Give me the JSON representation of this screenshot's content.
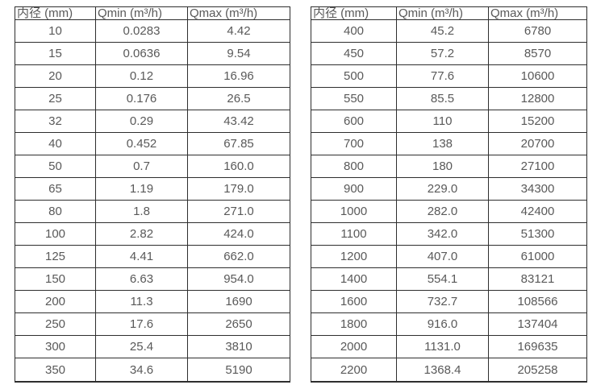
{
  "page": {
    "background_color": "#ffffff",
    "text_color": "#595959",
    "border_color": "#2e2e2e"
  },
  "tables": [
    {
      "name": "flow-spec-table-small-diameters",
      "columns": [
        "内径 (mm)",
        "Qmin (m³/h)",
        "Qmax (m³/h)"
      ],
      "rows": [
        [
          "10",
          "0.0283",
          "4.42"
        ],
        [
          "15",
          "0.0636",
          "9.54"
        ],
        [
          "20",
          "0.12",
          "16.96"
        ],
        [
          "25",
          "0.176",
          "26.5"
        ],
        [
          "32",
          "0.29",
          "43.42"
        ],
        [
          "40",
          "0.452",
          "67.85"
        ],
        [
          "50",
          "0.7",
          "160.0"
        ],
        [
          "65",
          "1.19",
          "179.0"
        ],
        [
          "80",
          "1.8",
          "271.0"
        ],
        [
          "100",
          "2.82",
          "424.0"
        ],
        [
          "125",
          "4.41",
          "662.0"
        ],
        [
          "150",
          "6.63",
          "954.0"
        ],
        [
          "200",
          "11.3",
          "1690"
        ],
        [
          "250",
          "17.6",
          "2650"
        ],
        [
          "300",
          "25.4",
          "3810"
        ],
        [
          "350",
          "34.6",
          "5190"
        ]
      ]
    },
    {
      "name": "flow-spec-table-large-diameters",
      "columns": [
        "内径 (mm)",
        "Qmin (m³/h)",
        "Qmax (m³/h)"
      ],
      "rows": [
        [
          "400",
          "45.2",
          "6780"
        ],
        [
          "450",
          "57.2",
          "8570"
        ],
        [
          "500",
          "77.6",
          "10600"
        ],
        [
          "550",
          "85.5",
          "12800"
        ],
        [
          "600",
          "110",
          "15200"
        ],
        [
          "700",
          "138",
          "20700"
        ],
        [
          "800",
          "180",
          "27100"
        ],
        [
          "900",
          "229.0",
          "34300"
        ],
        [
          "1000",
          "282.0",
          "42400"
        ],
        [
          "1100",
          "342.0",
          "51300"
        ],
        [
          "1200",
          "407.0",
          "61000"
        ],
        [
          "1400",
          "554.1",
          "83121"
        ],
        [
          "1600",
          "732.7",
          "108566"
        ],
        [
          "1800",
          "916.0",
          "137404"
        ],
        [
          "2000",
          "1131.0",
          "169635"
        ],
        [
          "2200",
          "1368.4",
          "205258"
        ]
      ]
    }
  ]
}
